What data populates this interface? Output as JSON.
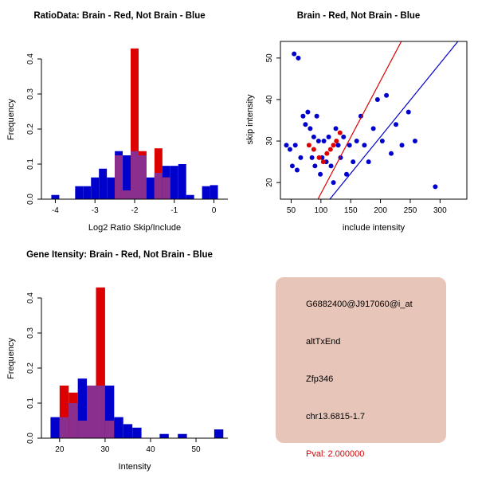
{
  "colors": {
    "blue": "#0000cc",
    "red": "#dd0000",
    "overlap": "#8b2f8f",
    "axis": "#000000"
  },
  "chart_data": [
    {
      "type": "histogram",
      "title": "RatioData: Brain - Red, Not Brain - Blue",
      "xlabel": "Log2 Ratio Skip/Include",
      "ylabel": "Frequency",
      "xlim": [
        -4.35,
        0.35
      ],
      "ylim": [
        0,
        0.45
      ],
      "xticks": [
        -4,
        -3,
        -2,
        -1,
        0
      ],
      "yticks": [
        0,
        0.1,
        0.2,
        0.3,
        0.4
      ],
      "ytick_labels": [
        "0.0",
        "0.1",
        "0.2",
        "0.3",
        "0.4"
      ],
      "bin_width": 0.2,
      "series_note": "bins are [left_edge, blue_freq, red_freq]; red = Brain, blue = Not Brain",
      "bins": [
        [
          -4.1,
          0.012,
          0
        ],
        [
          -3.5,
          0.037,
          0
        ],
        [
          -3.3,
          0.037,
          0
        ],
        [
          -3.1,
          0.062,
          0
        ],
        [
          -2.9,
          0.087,
          0
        ],
        [
          -2.7,
          0.062,
          0
        ],
        [
          -2.5,
          0.137,
          0.125
        ],
        [
          -2.3,
          0.125,
          0.025
        ],
        [
          -2.1,
          0.137,
          0.43
        ],
        [
          -1.9,
          0.125,
          0.137
        ],
        [
          -1.7,
          0.062,
          0
        ],
        [
          -1.5,
          0.075,
          0.145
        ],
        [
          -1.3,
          0.095,
          0.062
        ],
        [
          -1.1,
          0.095,
          0
        ],
        [
          -0.9,
          0.1,
          0
        ],
        [
          -0.7,
          0.012,
          0
        ],
        [
          -0.3,
          0.037,
          0
        ],
        [
          -0.1,
          0.04,
          0
        ]
      ]
    },
    {
      "type": "scatter",
      "title": "Brain - Red, Not Brain - Blue",
      "xlabel": "include intensity",
      "ylabel": "skip intensity",
      "xlim": [
        32,
        345
      ],
      "ylim": [
        16,
        54
      ],
      "xticks": [
        50,
        100,
        150,
        200,
        250,
        300
      ],
      "yticks": [
        20,
        30,
        40,
        50
      ],
      "blue_points": [
        [
          42,
          29
        ],
        [
          48,
          28
        ],
        [
          52,
          24
        ],
        [
          55,
          51
        ],
        [
          57,
          29
        ],
        [
          60,
          23
        ],
        [
          62,
          50
        ],
        [
          66,
          26
        ],
        [
          70,
          36
        ],
        [
          74,
          34
        ],
        [
          78,
          37
        ],
        [
          82,
          33
        ],
        [
          85,
          26
        ],
        [
          88,
          31
        ],
        [
          90,
          24
        ],
        [
          93,
          36
        ],
        [
          96,
          30
        ],
        [
          99,
          22
        ],
        [
          102,
          26
        ],
        [
          105,
          30
        ],
        [
          109,
          25
        ],
        [
          113,
          31
        ],
        [
          117,
          24
        ],
        [
          121,
          20
        ],
        [
          125,
          33
        ],
        [
          129,
          29
        ],
        [
          133,
          26
        ],
        [
          138,
          31
        ],
        [
          143,
          22
        ],
        [
          148,
          29
        ],
        [
          154,
          25
        ],
        [
          160,
          30
        ],
        [
          167,
          36
        ],
        [
          173,
          29
        ],
        [
          180,
          25
        ],
        [
          188,
          33
        ],
        [
          195,
          40
        ],
        [
          203,
          30
        ],
        [
          210,
          41
        ],
        [
          218,
          27
        ],
        [
          226,
          34
        ],
        [
          236,
          29
        ],
        [
          247,
          37
        ],
        [
          258,
          30
        ],
        [
          292,
          19
        ]
      ],
      "red_points": [
        [
          80,
          29
        ],
        [
          88,
          28
        ],
        [
          97,
          26
        ],
        [
          104,
          25
        ],
        [
          110,
          27
        ],
        [
          116,
          28
        ],
        [
          121,
          29
        ],
        [
          126,
          30
        ],
        [
          132,
          32
        ]
      ],
      "red_line": [
        [
          95,
          16
        ],
        [
          235,
          54
        ]
      ],
      "blue_line": [
        [
          115,
          16
        ],
        [
          330,
          54
        ]
      ]
    },
    {
      "type": "histogram",
      "title": "Gene Itensity: Brain - Red, Not Brain - Blue",
      "xlabel": "Intensity",
      "ylabel": "Frequency",
      "xlim": [
        16,
        57
      ],
      "ylim": [
        0,
        0.45
      ],
      "xticks": [
        20,
        30,
        40,
        50
      ],
      "yticks": [
        0,
        0.1,
        0.2,
        0.3,
        0.4
      ],
      "ytick_labels": [
        "0.0",
        "0.1",
        "0.2",
        "0.3",
        "0.4"
      ],
      "bin_width": 2,
      "series_note": "bins are [left_edge, blue_freq, red_freq]; red = Brain, blue = Not Brain",
      "bins": [
        [
          18,
          0.06,
          0
        ],
        [
          20,
          0.06,
          0.15
        ],
        [
          22,
          0.1,
          0.13
        ],
        [
          24,
          0.17,
          0.05
        ],
        [
          26,
          0.15,
          0.15
        ],
        [
          28,
          0.15,
          0.43
        ],
        [
          30,
          0.15,
          0.05
        ],
        [
          32,
          0.06,
          0
        ],
        [
          34,
          0.04,
          0
        ],
        [
          36,
          0.03,
          0
        ],
        [
          42,
          0.012,
          0
        ],
        [
          46,
          0.012,
          0
        ],
        [
          54,
          0.025,
          0
        ]
      ]
    }
  ],
  "info_panel": {
    "bg": "#e8c5b9",
    "text_color": "#000000",
    "pval_color": "#d40000",
    "lines": {
      "probe": "G6882400@J917060@i_at",
      "event": "altTxEnd",
      "gene": "Zfp346",
      "location": "chr13.6815-1.7",
      "pval": "Pval: 2.000000"
    }
  }
}
